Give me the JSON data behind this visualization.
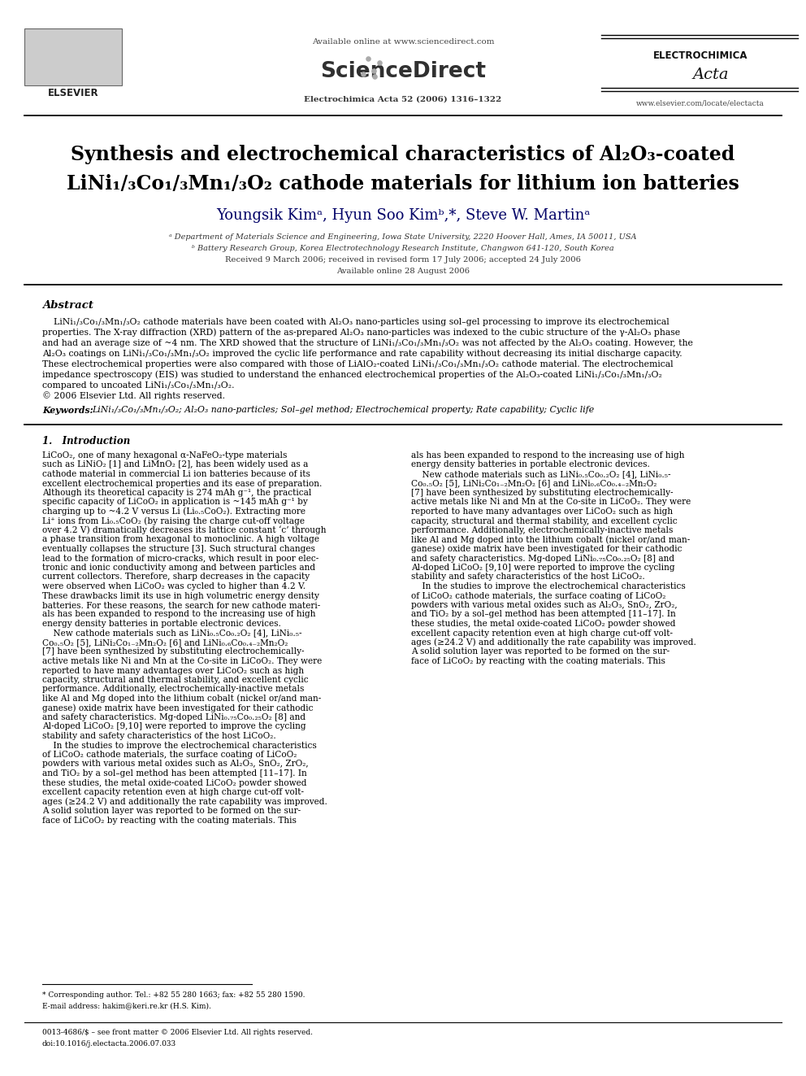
{
  "bg_color": "#ffffff",
  "fig_width": 9.92,
  "fig_height": 13.23,
  "header": {
    "available_online": "Available online at www.sciencedirect.com",
    "sciencedirect": "ScienceDirect",
    "journal_line": "Electrochimica Acta 52 (2006) 1316–1322",
    "elsevier": "ELSEVIER",
    "electrochimica": "ELECTROCHIMICA",
    "acta_script": "Acta",
    "website": "www.elsevier.com/locate/electacta"
  },
  "title_line1": "Synthesis and electrochemical characteristics of Al₂O₃-coated",
  "title_line2": "LiNi₁/₃Co₁/₃Mn₁/₃O₂ cathode materials for lithium ion batteries",
  "authors": "Youngsik Kimᵃ, Hyun Soo Kimᵇ,*, Steve W. Martinᵃ",
  "affil_a": "ᵃ Department of Materials Science and Engineering, Iowa State University, 2220 Hoover Hall, Ames, IA 50011, USA",
  "affil_b": "ᵇ Battery Research Group, Korea Electrotechnology Research Institute, Changwon 641-120, South Korea",
  "received": "Received 9 March 2006; received in revised form 17 July 2006; accepted 24 July 2006",
  "available": "Available online 28 August 2006",
  "abstract_title": "Abstract",
  "keywords_label": "Keywords: ",
  "keywords_text": "LiNi₁/₃Co₁/₃Mn₁/₃O₂; Al₂O₃ nano-particles; Sol–gel method; Electrochemical property; Rate capability; Cyclic life",
  "section1_title": "1.   Introduction",
  "footnote_star": "* Corresponding author. Tel.: +82 55 280 1663; fax: +82 55 280 1590.",
  "footnote_email": "E-mail address: hakim@keri.re.kr (H.S. Kim).",
  "footnote_issn": "0013-4686/$ – see front matter © 2006 Elsevier Ltd. All rights reserved.",
  "footnote_doi": "doi:10.1016/j.electacta.2006.07.033",
  "abstract_lines": [
    "    LiNi₁/₃Co₁/₃Mn₁/₃O₂ cathode materials have been coated with Al₂O₃ nano-particles using sol–gel processing to improve its electrochemical",
    "properties. The X-ray diffraction (XRD) pattern of the as-prepared Al₂O₃ nano-particles was indexed to the cubic structure of the γ-Al₂O₃ phase",
    "and had an average size of ~4 nm. The XRD showed that the structure of LiNi₁/₃Co₁/₃Mn₁/₃O₂ was not affected by the Al₂O₃ coating. However, the",
    "Al₂O₃ coatings on LiNi₁/₃Co₁/₃Mn₁/₃O₂ improved the cyclic life performance and rate capability without decreasing its initial discharge capacity.",
    "These electrochemical properties were also compared with those of LiAlO₂-coated LiNi₁/₃Co₁/₃Mn₁/₃O₂ cathode material. The electrochemical",
    "impedance spectroscopy (EIS) was studied to understand the enhanced electrochemical properties of the Al₂O₃-coated LiNi₁/₃Co₁/₃Mn₁/₃O₂",
    "compared to uncoated LiNi₁/₃Co₁/₃Mn₁/₃O₂.",
    "© 2006 Elsevier Ltd. All rights reserved."
  ],
  "col1_lines": [
    "LiCoO₂, one of many hexagonal α-NaFeO₂-type materials",
    "such as LiNiO₂ [1] and LiMnO₂ [2], has been widely used as a",
    "cathode material in commercial Li ion batteries because of its",
    "excellent electrochemical properties and its ease of preparation.",
    "Although its theoretical capacity is 274 mAh g⁻¹, the practical",
    "specific capacity of LiCoO₂ in application is ~145 mAh g⁻¹ by",
    "charging up to ~4.2 V versus Li (Li₀.₅CoO₂). Extracting more",
    "Li⁺ ions from Li₀.₅CoO₂ (by raising the charge cut-off voltage",
    "over 4.2 V) dramatically decreases its lattice constant ‘c’ through",
    "a phase transition from hexagonal to monoclinic. A high voltage",
    "eventually collapses the structure [3]. Such structural changes",
    "lead to the formation of micro-cracks, which result in poor elec-",
    "tronic and ionic conductivity among and between particles and",
    "current collectors. Therefore, sharp decreases in the capacity",
    "were observed when LiCoO₂ was cycled to higher than 4.2 V.",
    "These drawbacks limit its use in high volumetric energy density",
    "batteries. For these reasons, the search for new cathode materi-",
    "als has been expanded to respond to the increasing use of high",
    "energy density batteries in portable electronic devices.",
    "    New cathode materials such as LiNi₀.₅Co₀.₂O₂ [4], LiNi₀.₅-",
    "Co₀.₅O₂ [5], LiNi₂Co₁₋₂Mn₂O₂ [6] and LiNi₀.₆Co₀.₄₋₂Mn₂O₂",
    "[7] have been synthesized by substituting electrochemically-",
    "active metals like Ni and Mn at the Co-site in LiCoO₂. They were",
    "reported to have many advantages over LiCoO₂ such as high",
    "capacity, structural and thermal stability, and excellent cyclic",
    "performance. Additionally, electrochemically-inactive metals",
    "like Al and Mg doped into the lithium cobalt (nickel or/and man-",
    "ganese) oxide matrix have been investigated for their cathodic",
    "and safety characteristics. Mg-doped LiNi₀.₇₅Co₀.₂₅O₂ [8] and",
    "Al-doped LiCoO₂ [9,10] were reported to improve the cycling",
    "stability and safety characteristics of the host LiCoO₂.",
    "    In the studies to improve the electrochemical characteristics",
    "of LiCoO₂ cathode materials, the surface coating of LiCoO₂",
    "powders with various metal oxides such as Al₂O₃, SnO₂, ZrO₂,",
    "and TiO₂ by a sol–gel method has been attempted [11–17]. In",
    "these studies, the metal oxide-coated LiCoO₂ powder showed",
    "excellent capacity retention even at high charge cut-off volt-",
    "ages (≥24.2 V) and additionally the rate capability was improved.",
    "A solid solution layer was reported to be formed on the sur-",
    "face of LiCoO₂ by reacting with the coating materials. This"
  ],
  "col2_lines": [
    "als has been expanded to respond to the increasing use of high",
    "energy density batteries in portable electronic devices.",
    "    New cathode materials such as LiNi₀.₅Co₀.₂O₂ [4], LiNi₀.₅-",
    "Co₀.₅O₂ [5], LiNi₂Co₁₋₂Mn₂O₂ [6] and LiNi₀.₆Co₀.₄₋₂Mn₂O₂",
    "[7] have been synthesized by substituting electrochemically-",
    "active metals like Ni and Mn at the Co-site in LiCoO₂. They were",
    "reported to have many advantages over LiCoO₂ such as high",
    "capacity, structural and thermal stability, and excellent cyclic",
    "performance. Additionally, electrochemically-inactive metals",
    "like Al and Mg doped into the lithium cobalt (nickel or/and man-",
    "ganese) oxide matrix have been investigated for their cathodic",
    "and safety characteristics. Mg-doped LiNi₀.₇₅Co₀.₂₅O₂ [8] and",
    "Al-doped LiCoO₂ [9,10] were reported to improve the cycling",
    "stability and safety characteristics of the host LiCoO₂.",
    "    In the studies to improve the electrochemical characteristics",
    "of LiCoO₂ cathode materials, the surface coating of LiCoO₂",
    "powders with various metal oxides such as Al₂O₃, SnO₂, ZrO₂,",
    "and TiO₂ by a sol–gel method has been attempted [11–17]. In",
    "these studies, the metal oxide-coated LiCoO₂ powder showed",
    "excellent capacity retention even at high charge cut-off volt-",
    "ages (≥24.2 V) and additionally the rate capability was improved.",
    "A solid solution layer was reported to be formed on the sur-",
    "face of LiCoO₂ by reacting with the coating materials. This"
  ]
}
